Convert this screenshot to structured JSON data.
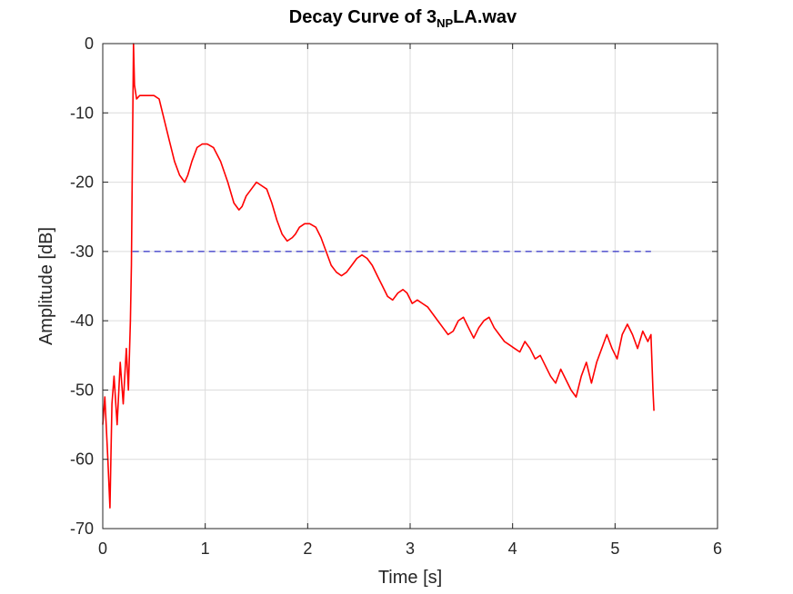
{
  "chart_data": {
    "type": "line",
    "title": {
      "main": "Decay Curve of 3",
      "subscript": "NP",
      "suffix": "LA.wav"
    },
    "xlabel": "Time [s]",
    "ylabel": "Amplitude [dB]",
    "xlim": [
      0,
      6
    ],
    "ylim": [
      -70,
      0
    ],
    "xticks": [
      0,
      1,
      2,
      3,
      4,
      5,
      6
    ],
    "yticks": [
      0,
      -10,
      -20,
      -30,
      -40,
      -50,
      -60,
      -70
    ],
    "xtick_labels": [
      "0",
      "1",
      "2",
      "3",
      "4",
      "5",
      "6"
    ],
    "ytick_labels": [
      "0",
      "-10",
      "-20",
      "-30",
      "-40",
      "-50",
      "-60",
      "-70"
    ],
    "grid": true,
    "colors": {
      "decay": "#ff0000",
      "threshold": "#0000bb",
      "grid": "#dcdcdc",
      "axes": "#262626"
    },
    "series": [
      {
        "style": "solid",
        "color": "#ff0000",
        "x": [
          0,
          0.02,
          0.05,
          0.07,
          0.09,
          0.11,
          0.14,
          0.17,
          0.2,
          0.23,
          0.25,
          0.27,
          0.28,
          0.29,
          0.3,
          0.31,
          0.33,
          0.36,
          0.4,
          0.45,
          0.5,
          0.55,
          0.6,
          0.65,
          0.7,
          0.75,
          0.8,
          0.83,
          0.87,
          0.92,
          0.97,
          1.02,
          1.08,
          1.15,
          1.22,
          1.28,
          1.33,
          1.36,
          1.4,
          1.45,
          1.5,
          1.55,
          1.6,
          1.65,
          1.7,
          1.75,
          1.8,
          1.85,
          1.88,
          1.92,
          1.97,
          2.02,
          2.08,
          2.13,
          2.18,
          2.23,
          2.28,
          2.33,
          2.38,
          2.43,
          2.48,
          2.53,
          2.58,
          2.63,
          2.68,
          2.73,
          2.78,
          2.83,
          2.88,
          2.93,
          2.97,
          3.02,
          3.07,
          3.12,
          3.17,
          3.22,
          3.27,
          3.32,
          3.37,
          3.42,
          3.47,
          3.52,
          3.57,
          3.62,
          3.67,
          3.72,
          3.77,
          3.82,
          3.87,
          3.92,
          3.97,
          4.02,
          4.07,
          4.12,
          4.17,
          4.22,
          4.27,
          4.32,
          4.37,
          4.42,
          4.47,
          4.52,
          4.57,
          4.62,
          4.67,
          4.72,
          4.77,
          4.82,
          4.87,
          4.92,
          4.97,
          5.02,
          5.07,
          5.12,
          5.17,
          5.22,
          5.27,
          5.32,
          5.35,
          5.37,
          5.38
        ],
        "y": [
          -55,
          -51,
          -60,
          -67,
          -52,
          -48,
          -55,
          -46,
          -52,
          -44,
          -50,
          -40,
          -32,
          -15,
          0,
          -6,
          -8,
          -7.5,
          -7.5,
          -7.5,
          -7.5,
          -8,
          -11,
          -14,
          -17,
          -19,
          -20,
          -19,
          -17,
          -15,
          -14.5,
          -14.5,
          -15,
          -17,
          -20,
          -23,
          -24,
          -23.5,
          -22,
          -21,
          -20,
          -20.5,
          -21,
          -23,
          -25.5,
          -27.5,
          -28.5,
          -28,
          -27.5,
          -26.5,
          -26,
          -26,
          -26.5,
          -28,
          -30,
          -32,
          -33,
          -33.5,
          -33,
          -32,
          -31,
          -30.5,
          -31,
          -32,
          -33.5,
          -35,
          -36.5,
          -37,
          -36,
          -35.5,
          -36,
          -37.5,
          -37,
          -37.5,
          -38,
          -39,
          -40,
          -41,
          -42,
          -41.5,
          -40,
          -39.5,
          -41,
          -42.5,
          -41,
          -40,
          -39.5,
          -41,
          -42,
          -43,
          -43.5,
          -44,
          -44.5,
          -43,
          -44,
          -45.5,
          -45,
          -46.5,
          -48,
          -49,
          -47,
          -48.5,
          -50,
          -51,
          -48,
          -46,
          -49,
          -46,
          -44,
          -42,
          -44,
          -45.5,
          -42,
          -40.5,
          -42,
          -44,
          -41.5,
          -43,
          -42,
          -50,
          -53
        ]
      },
      {
        "style": "dashed",
        "color": "#0000bb",
        "x": [
          0.29,
          5.35
        ],
        "y": [
          -30,
          -30
        ]
      }
    ]
  }
}
